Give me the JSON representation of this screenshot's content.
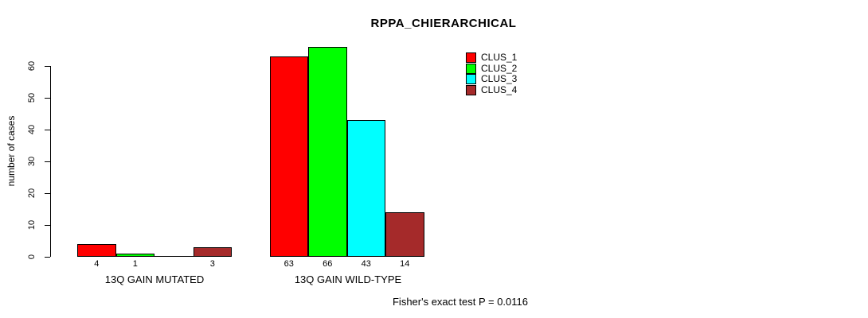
{
  "title": "RPPA_CHIERARCHICAL",
  "footer": "Fisher's exact test P = 0.0116",
  "chart_data": {
    "type": "bar",
    "title": "RPPA_CHIERARCHICAL",
    "xlabel": "",
    "ylabel": "number of cases",
    "ylim": [
      0,
      60
    ],
    "yticks": [
      0,
      10,
      20,
      30,
      40,
      50,
      60
    ],
    "grid": false,
    "legend_position": "top-right",
    "categories": [
      "13Q GAIN MUTATED",
      "13Q GAIN WILD-TYPE"
    ],
    "series": [
      {
        "name": "CLUS_1",
        "color": "#ff0000",
        "values": [
          4,
          63
        ]
      },
      {
        "name": "CLUS_2",
        "color": "#00ff00",
        "values": [
          1,
          66
        ]
      },
      {
        "name": "CLUS_3",
        "color": "#00ffff",
        "values": [
          0,
          43
        ]
      },
      {
        "name": "CLUS_4",
        "color": "#a52a2a",
        "values": [
          3,
          14
        ]
      }
    ],
    "bar_value_labels": [
      [
        "4",
        "1",
        "",
        "3"
      ],
      [
        "63",
        "66",
        "43",
        "14"
      ]
    ],
    "annotation": "Fisher's exact test P = 0.0116"
  }
}
